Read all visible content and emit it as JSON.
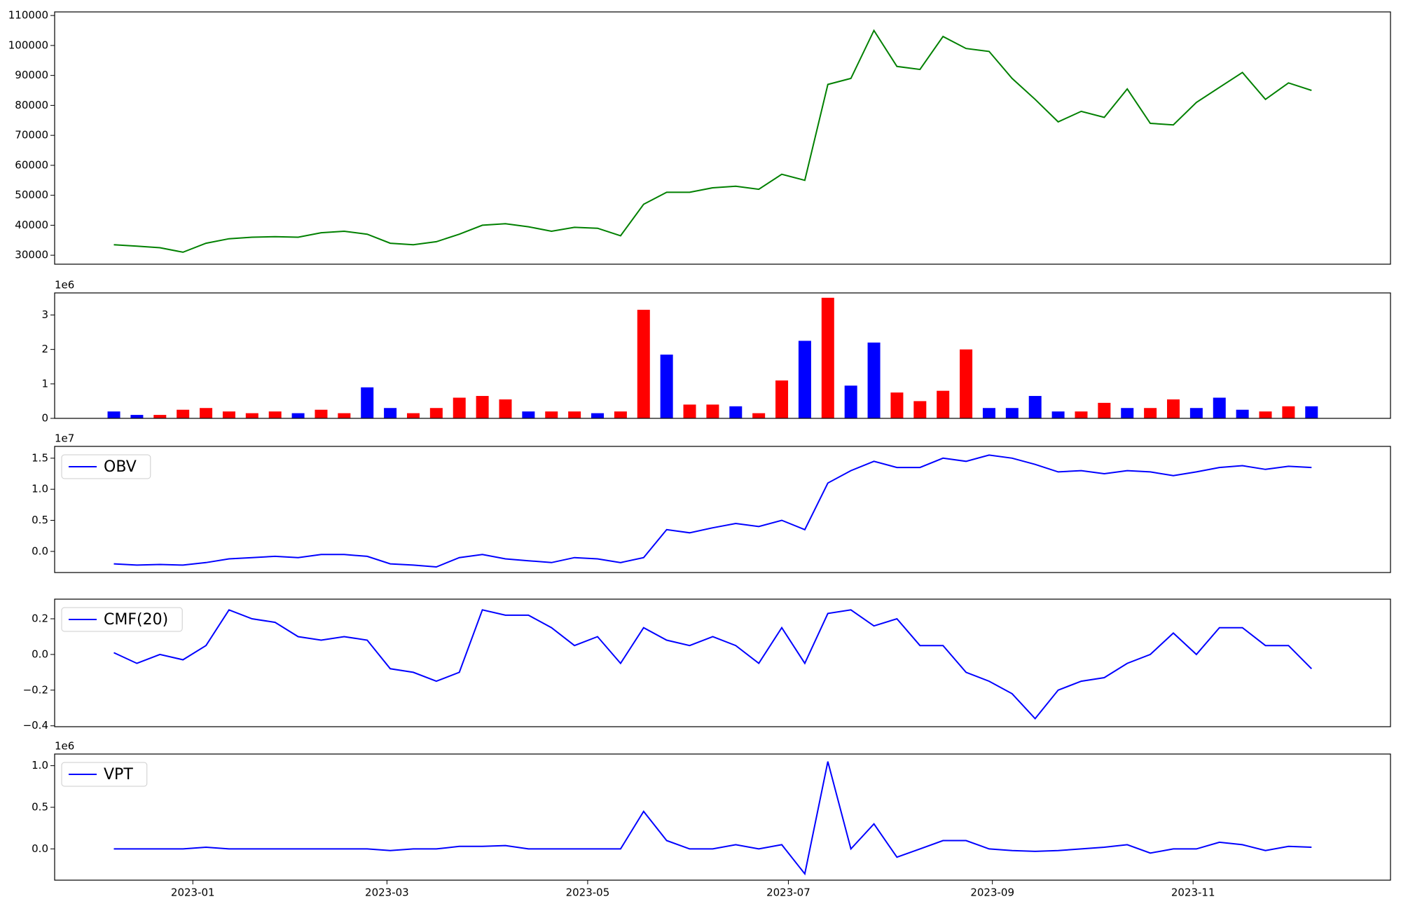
{
  "chart_data": [
    {
      "type": "line",
      "color": "#008000",
      "x": [
        "2022-12-08",
        "2022-12-15",
        "2022-12-22",
        "2022-12-29",
        "2023-01-05",
        "2023-01-12",
        "2023-01-19",
        "2023-01-26",
        "2023-02-02",
        "2023-02-09",
        "2023-02-16",
        "2023-02-23",
        "2023-03-02",
        "2023-03-09",
        "2023-03-16",
        "2023-03-23",
        "2023-03-30",
        "2023-04-06",
        "2023-04-13",
        "2023-04-20",
        "2023-04-27",
        "2023-05-04",
        "2023-05-11",
        "2023-05-18",
        "2023-05-25",
        "2023-06-01",
        "2023-06-08",
        "2023-06-15",
        "2023-06-22",
        "2023-06-29",
        "2023-07-06",
        "2023-07-13",
        "2023-07-20",
        "2023-07-27",
        "2023-08-03",
        "2023-08-10",
        "2023-08-17",
        "2023-08-24",
        "2023-08-31",
        "2023-09-07",
        "2023-09-14",
        "2023-09-21",
        "2023-09-28",
        "2023-10-05",
        "2023-10-12",
        "2023-10-19",
        "2023-10-26",
        "2023-11-02",
        "2023-11-09",
        "2023-11-16",
        "2023-11-23",
        "2023-11-30",
        "2023-12-07"
      ],
      "xlim": [
        "2022-11-20",
        "2023-12-31"
      ],
      "values": [
        33500,
        33000,
        32500,
        31000,
        34000,
        35500,
        36000,
        36200,
        36000,
        37500,
        38000,
        37000,
        34000,
        33500,
        34500,
        37000,
        40000,
        40500,
        39500,
        38000,
        39300,
        39000,
        36500,
        47000,
        51000,
        51000,
        52500,
        53000,
        52000,
        57000,
        55000,
        87000,
        89000,
        105000,
        93000,
        92000,
        103000,
        99000,
        98000,
        89000,
        82000,
        74500,
        78000,
        76000,
        85500,
        74000,
        73500,
        81000,
        86000,
        91000,
        82000,
        87500,
        85000
      ],
      "ylim": [
        27000,
        111200
      ],
      "yticks": [
        30000,
        40000,
        50000,
        60000,
        70000,
        80000,
        90000,
        100000,
        110000
      ]
    },
    {
      "type": "bar",
      "offset_label": "1e6",
      "values": [
        0.2,
        0.1,
        0.1,
        0.25,
        0.3,
        0.2,
        0.15,
        0.2,
        0.15,
        0.25,
        0.15,
        0.9,
        0.3,
        0.15,
        0.3,
        0.6,
        0.65,
        0.55,
        0.2,
        0.2,
        0.2,
        0.15,
        0.2,
        3.15,
        1.85,
        0.4,
        0.4,
        0.35,
        0.15,
        1.1,
        2.25,
        3.5,
        0.95,
        2.2,
        0.75,
        0.5,
        0.8,
        2.0,
        0.3,
        0.3,
        0.65,
        0.2,
        0.2,
        0.45,
        0.3,
        0.3,
        0.55,
        0.3,
        0.6,
        0.25,
        0.2,
        0.35,
        0.35
      ],
      "colors": [
        "#0000ff",
        "#0000ff",
        "#ff0000",
        "#ff0000",
        "#ff0000",
        "#ff0000",
        "#ff0000",
        "#ff0000",
        "#0000ff",
        "#ff0000",
        "#ff0000",
        "#0000ff",
        "#0000ff",
        "#ff0000",
        "#ff0000",
        "#ff0000",
        "#ff0000",
        "#ff0000",
        "#0000ff",
        "#ff0000",
        "#ff0000",
        "#0000ff",
        "#ff0000",
        "#ff0000",
        "#0000ff",
        "#ff0000",
        "#ff0000",
        "#0000ff",
        "#ff0000",
        "#ff0000",
        "#0000ff",
        "#ff0000",
        "#0000ff",
        "#0000ff",
        "#ff0000",
        "#ff0000",
        "#ff0000",
        "#ff0000",
        "#0000ff",
        "#0000ff",
        "#0000ff",
        "#0000ff",
        "#ff0000",
        "#ff0000",
        "#0000ff",
        "#ff0000",
        "#ff0000",
        "#0000ff",
        "#0000ff",
        "#0000ff",
        "#ff0000",
        "#ff0000",
        "#0000ff"
      ],
      "ylim": [
        0,
        3.64
      ],
      "yticks": [
        0,
        1,
        2,
        3
      ]
    },
    {
      "type": "line",
      "offset_label": "1e7",
      "legend": "upper left",
      "series": [
        {
          "name": "OBV",
          "color": "#0000ff",
          "values": [
            -0.2,
            -0.22,
            -0.21,
            -0.22,
            -0.18,
            -0.12,
            -0.1,
            -0.08,
            -0.1,
            -0.05,
            -0.05,
            -0.08,
            -0.2,
            -0.22,
            -0.25,
            -0.1,
            -0.05,
            -0.12,
            -0.15,
            -0.18,
            -0.1,
            -0.12,
            -0.18,
            -0.1,
            0.35,
            0.3,
            0.38,
            0.45,
            0.4,
            0.5,
            0.35,
            1.1,
            1.3,
            1.45,
            1.35,
            1.35,
            1.5,
            1.45,
            1.55,
            1.5,
            1.4,
            1.28,
            1.3,
            1.25,
            1.3,
            1.28,
            1.22,
            1.28,
            1.35,
            1.38,
            1.32,
            1.37,
            1.35
          ]
        }
      ],
      "ylim": [
        -0.34,
        1.69
      ],
      "yticks": [
        {
          "value": 0,
          "label": "0.0"
        },
        {
          "value": 0.5,
          "label": "0.5"
        },
        {
          "value": 1,
          "label": "1.0"
        },
        {
          "value": 1.5,
          "label": "1.5"
        }
      ]
    },
    {
      "type": "line",
      "legend": "upper left",
      "series": [
        {
          "name": "CMF(20)",
          "color": "#0000ff",
          "values": [
            0.01,
            -0.05,
            0.0,
            -0.03,
            0.05,
            0.25,
            0.2,
            0.18,
            0.1,
            0.08,
            0.1,
            0.08,
            -0.08,
            -0.1,
            -0.15,
            -0.1,
            0.25,
            0.22,
            0.22,
            0.15,
            0.05,
            0.1,
            -0.05,
            0.15,
            0.08,
            0.05,
            0.1,
            0.05,
            -0.05,
            0.15,
            -0.05,
            0.23,
            0.25,
            0.16,
            0.2,
            0.05,
            0.05,
            -0.1,
            -0.15,
            -0.22,
            -0.36,
            -0.2,
            -0.15,
            -0.13,
            -0.05,
            0.0,
            0.12,
            0.0,
            0.15,
            0.15,
            0.05,
            0.05,
            -0.08
          ]
        }
      ],
      "ylim": [
        -0.405,
        0.31
      ],
      "yticks": [
        {
          "value": -0.4,
          "label": "−0.4"
        },
        {
          "value": -0.2,
          "label": "−0.2"
        },
        {
          "value": 0,
          "label": "0.0"
        },
        {
          "value": 0.2,
          "label": "0.2"
        }
      ]
    },
    {
      "type": "line",
      "offset_label": "1e6",
      "legend": "upper left",
      "series": [
        {
          "name": "VPT",
          "color": "#0000ff",
          "values": [
            0.0,
            0.0,
            0.0,
            0.0,
            0.02,
            0.0,
            0.0,
            0.0,
            0.0,
            0.0,
            0.0,
            0.0,
            -0.02,
            0.0,
            0.0,
            0.03,
            0.03,
            0.04,
            0.0,
            0.0,
            0.0,
            0.0,
            0.0,
            0.45,
            0.1,
            0.0,
            0.0,
            0.05,
            0.0,
            0.05,
            -0.3,
            1.05,
            0.0,
            0.3,
            -0.1,
            0.0,
            0.1,
            0.1,
            0.0,
            -0.02,
            -0.03,
            -0.02,
            0.0,
            0.02,
            0.05,
            -0.05,
            0.0,
            0.0,
            0.08,
            0.05,
            -0.02,
            0.03,
            0.02
          ]
        }
      ],
      "ylim": [
        -0.376,
        1.14
      ],
      "yticks": [
        {
          "value": 0,
          "label": "0.0"
        },
        {
          "value": 0.5,
          "label": "0.5"
        },
        {
          "value": 1,
          "label": "1.0"
        }
      ],
      "xticks": [
        "2023-01",
        "2023-03",
        "2023-05",
        "2023-07",
        "2023-09",
        "2023-11"
      ]
    }
  ]
}
